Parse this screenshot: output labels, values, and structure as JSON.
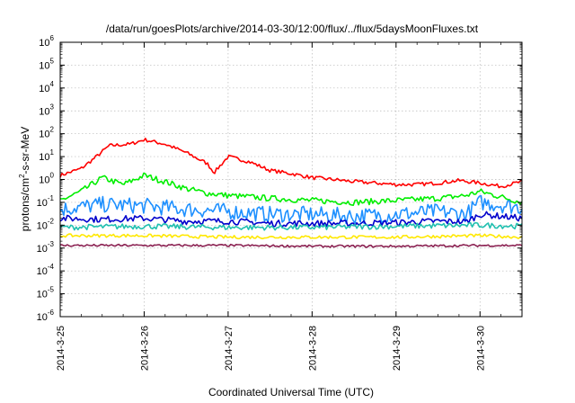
{
  "chart_data": {
    "type": "line",
    "title": "/data/run/goesPlots/archive/2014-03-30/12:00/flux/../flux/5daysMoonFluxes.txt",
    "xlabel": "Coordinated Universal Time (UTC)",
    "ylabel_main": "protons/cm",
    "ylabel_sup": "2",
    "ylabel_rest": "-s-sr-MeV",
    "yscale": "log",
    "ylim_exp": [
      -6,
      6
    ],
    "y_ticks": [
      {
        "base": "10",
        "exp": "-6"
      },
      {
        "base": "10",
        "exp": "-5"
      },
      {
        "base": "10",
        "exp": "-4"
      },
      {
        "base": "10",
        "exp": "-3"
      },
      {
        "base": "10",
        "exp": "-2"
      },
      {
        "base": "10",
        "exp": "-1"
      },
      {
        "base": "10",
        "exp": "0"
      },
      {
        "base": "10",
        "exp": "1"
      },
      {
        "base": "10",
        "exp": "2"
      },
      {
        "base": "10",
        "exp": "3"
      },
      {
        "base": "10",
        "exp": "4"
      },
      {
        "base": "10",
        "exp": "5"
      },
      {
        "base": "10",
        "exp": "6"
      }
    ],
    "x_start": "2014-03-25 00:00",
    "x_end": "2014-03-30 12:00",
    "x_ticks": [
      "2014-3-25",
      "2014-3-26",
      "2014-3-27",
      "2014-3-28",
      "2014-3-29",
      "2014-3-30"
    ],
    "grid": true,
    "series": [
      {
        "color": "#ff0000",
        "x": [
          "2014-03-25 00:00",
          "2014-03-25 06:00",
          "2014-03-25 10:00",
          "2014-03-25 14:00",
          "2014-03-25 20:00",
          "2014-03-26 00:00",
          "2014-03-26 06:00",
          "2014-03-26 12:00",
          "2014-03-26 18:00",
          "2014-03-26 20:00",
          "2014-03-27 00:00",
          "2014-03-27 06:00",
          "2014-03-27 12:00",
          "2014-03-27 18:00",
          "2014-03-28 00:00",
          "2014-03-28 06:00",
          "2014-03-28 12:00",
          "2014-03-28 18:00",
          "2014-03-29 00:00",
          "2014-03-29 06:00",
          "2014-03-29 12:00",
          "2014-03-29 18:00",
          "2014-03-30 00:00",
          "2014-03-30 06:00",
          "2014-03-30 12:00"
        ],
        "y": [
          1.5,
          3,
          9,
          30,
          35,
          55,
          35,
          15,
          5,
          2,
          10,
          6,
          2.5,
          1.8,
          1.2,
          1.0,
          0.8,
          0.7,
          0.6,
          0.6,
          0.7,
          0.9,
          0.7,
          0.5,
          0.8
        ],
        "noise": 0.08
      },
      {
        "color": "#00ee00",
        "x": [
          "2014-03-25 00:00",
          "2014-03-25 06:00",
          "2014-03-25 12:00",
          "2014-03-25 18:00",
          "2014-03-26 00:00",
          "2014-03-26 06:00",
          "2014-03-26 12:00",
          "2014-03-26 18:00",
          "2014-03-27 00:00",
          "2014-03-27 12:00",
          "2014-03-28 00:00",
          "2014-03-28 12:00",
          "2014-03-29 00:00",
          "2014-03-29 12:00",
          "2014-03-29 20:00",
          "2014-03-30 00:00",
          "2014-03-30 12:00"
        ],
        "y": [
          0.12,
          0.3,
          1.2,
          0.6,
          1.5,
          0.8,
          0.4,
          0.25,
          0.2,
          0.15,
          0.12,
          0.1,
          0.12,
          0.15,
          0.2,
          0.3,
          0.1
        ],
        "noise": 0.13
      },
      {
        "color": "#1e90ff",
        "x": [
          "2014-03-25 00:00",
          "2014-03-25 12:00",
          "2014-03-26 00:00",
          "2014-03-26 12:00",
          "2014-03-27 00:00",
          "2014-03-27 12:00",
          "2014-03-28 00:00",
          "2014-03-28 12:00",
          "2014-03-29 00:00",
          "2014-03-29 12:00",
          "2014-03-29 20:00",
          "2014-03-30 00:00",
          "2014-03-30 12:00"
        ],
        "y": [
          0.05,
          0.08,
          0.07,
          0.05,
          0.04,
          0.03,
          0.03,
          0.025,
          0.03,
          0.04,
          0.03,
          0.1,
          0.06
        ],
        "noise": 0.35
      },
      {
        "color": "#0000cc",
        "x": [
          "2014-03-25 00:00",
          "2014-03-25 12:00",
          "2014-03-26 00:00",
          "2014-03-26 12:00",
          "2014-03-27 00:00",
          "2014-03-27 12:00",
          "2014-03-28 00:00",
          "2014-03-28 12:00",
          "2014-03-29 00:00",
          "2014-03-29 12:00",
          "2014-03-29 20:00",
          "2014-03-30 00:00",
          "2014-03-30 12:00"
        ],
        "y": [
          0.02,
          0.018,
          0.02,
          0.015,
          0.015,
          0.012,
          0.012,
          0.012,
          0.013,
          0.015,
          0.014,
          0.03,
          0.02
        ],
        "noise": 0.14
      },
      {
        "color": "#20c0b0",
        "x": [
          "2014-03-25 00:00",
          "2014-03-26 00:00",
          "2014-03-27 00:00",
          "2014-03-28 00:00",
          "2014-03-29 00:00",
          "2014-03-30 00:00",
          "2014-03-30 12:00"
        ],
        "y": [
          0.008,
          0.009,
          0.008,
          0.008,
          0.009,
          0.01,
          0.009
        ],
        "noise": 0.12
      },
      {
        "color": "#ffe800",
        "x": [
          "2014-03-25 00:00",
          "2014-03-26 00:00",
          "2014-03-27 00:00",
          "2014-03-28 00:00",
          "2014-03-29 00:00",
          "2014-03-30 00:00",
          "2014-03-30 12:00"
        ],
        "y": [
          0.0035,
          0.0035,
          0.003,
          0.003,
          0.003,
          0.0035,
          0.003
        ],
        "noise": 0.07
      },
      {
        "color": "#8b2252",
        "x": [
          "2014-03-25 00:00",
          "2014-03-26 00:00",
          "2014-03-27 00:00",
          "2014-03-28 00:00",
          "2014-03-29 00:00",
          "2014-03-30 00:00",
          "2014-03-30 12:00"
        ],
        "y": [
          0.0013,
          0.0013,
          0.0013,
          0.0012,
          0.0012,
          0.0013,
          0.0013
        ],
        "noise": 0.05
      }
    ]
  }
}
